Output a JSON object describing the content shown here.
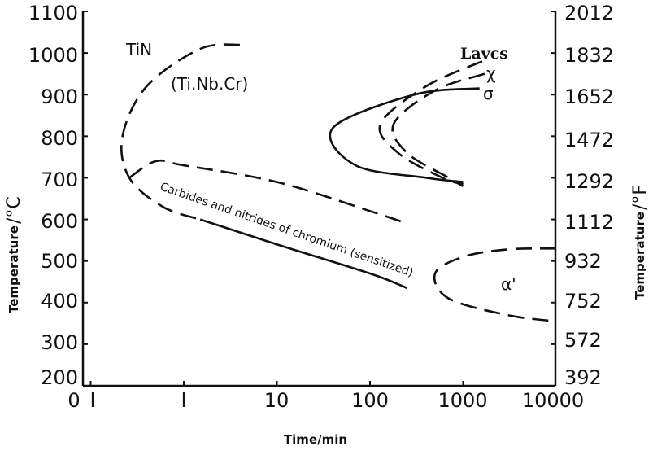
{
  "chart_data": {
    "type": "line",
    "title": "",
    "xlabel": "Time/min",
    "ylabel_left": "Temperature",
    "ylabel_left_unit": "/°C",
    "ylabel_right": "Temperature",
    "ylabel_right_unit": "/°F",
    "x_scale": "log",
    "ylim": [
      200,
      1100
    ],
    "y_ticks_left": [
      "1100",
      "1000",
      "900",
      "800",
      "700",
      "600",
      "500",
      "400",
      "300",
      "200"
    ],
    "y_ticks_right": [
      "2012",
      "1832",
      "1652",
      "1472",
      "1292",
      "1112",
      "932",
      "752",
      "572",
      "392"
    ],
    "x_ticks": [
      "0",
      "l",
      "l",
      "10",
      "100",
      "1000",
      "10000"
    ],
    "annotations": {
      "tin": "TiN",
      "tin_sub": "(Ti.Nb.Cr)",
      "laves": "Lavcs",
      "chi": "χ",
      "sigma": "σ",
      "carbides": "Carbides and nitrides of chromium (sensitized)",
      "alpha": "α'"
    },
    "series": [
      {
        "label": "TiN",
        "style": "dashed",
        "points": [
          [
            4,
            1020
          ],
          [
            1.5,
            1010
          ],
          [
            0.4,
            920
          ],
          [
            0.22,
            800
          ],
          [
            0.26,
            700
          ],
          [
            0.6,
            630
          ],
          [
            1.5,
            600
          ]
        ]
      },
      {
        "label": "carbides-upper",
        "style": "dashed",
        "points": [
          [
            0.26,
            700
          ],
          [
            0.5,
            740
          ],
          [
            1,
            730
          ],
          [
            10,
            690
          ],
          [
            100,
            620
          ],
          [
            250,
            590
          ]
        ]
      },
      {
        "label": "carbides-lower",
        "style": "solid",
        "points": [
          [
            1.5,
            600
          ],
          [
            10,
            540
          ],
          [
            100,
            470
          ],
          [
            250,
            435
          ]
        ]
      },
      {
        "label": "Laves",
        "style": "dashed",
        "points": [
          [
            1600,
            980
          ],
          [
            400,
            920
          ],
          [
            130,
            830
          ],
          [
            200,
            760
          ],
          [
            600,
            700
          ],
          [
            1000,
            685
          ]
        ]
      },
      {
        "label": "χ",
        "style": "dashed",
        "points": [
          [
            1700,
            950
          ],
          [
            500,
            910
          ],
          [
            180,
            830
          ],
          [
            250,
            760
          ],
          [
            700,
            700
          ],
          [
            1000,
            680
          ]
        ]
      },
      {
        "label": "σ",
        "style": "solid",
        "points": [
          [
            1500,
            915
          ],
          [
            300,
            900
          ],
          [
            40,
            820
          ],
          [
            70,
            730
          ],
          [
            400,
            700
          ],
          [
            1000,
            690
          ]
        ]
      },
      {
        "label": "α'",
        "style": "dashed",
        "points": [
          [
            10000,
            530
          ],
          [
            3000,
            528
          ],
          [
            1000,
            510
          ],
          [
            500,
            470
          ],
          [
            700,
            410
          ],
          [
            3000,
            370
          ],
          [
            10000,
            355
          ]
        ]
      }
    ]
  }
}
